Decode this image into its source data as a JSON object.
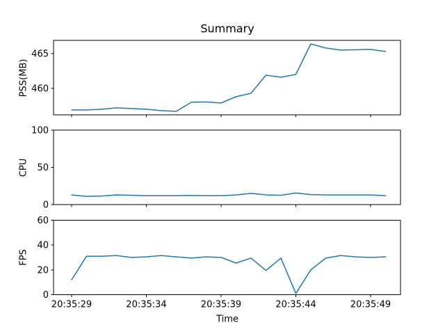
{
  "figure": {
    "title": "Summary",
    "xlabel": "Time",
    "background_color": "#ffffff",
    "line_color": "#1f77b4",
    "axis_color": "#000000",
    "x_tick_indices": [
      0,
      5,
      10,
      15,
      20
    ]
  },
  "chart_data": [
    {
      "type": "line",
      "ylabel": "PSS(MB)",
      "x": [
        "20:35:29",
        "20:35:30",
        "20:35:31",
        "20:35:32",
        "20:35:33",
        "20:35:34",
        "20:35:35",
        "20:35:36",
        "20:35:37",
        "20:35:38",
        "20:35:39",
        "20:35:40",
        "20:35:41",
        "20:35:42",
        "20:35:43",
        "20:35:44",
        "20:35:45",
        "20:35:46",
        "20:35:47",
        "20:35:48",
        "20:35:49",
        "20:35:50"
      ],
      "values": [
        456.9,
        456.9,
        457.0,
        457.2,
        457.1,
        457.0,
        456.8,
        456.7,
        458.0,
        458.05,
        457.9,
        458.8,
        459.3,
        461.9,
        461.6,
        462.0,
        466.4,
        465.8,
        465.5,
        465.55,
        465.6,
        465.3
      ],
      "ylim": [
        456.2,
        466.9
      ],
      "yticks": [
        460,
        465
      ],
      "show_x_tick_labels": false,
      "grid": false
    },
    {
      "type": "line",
      "ylabel": "CPU",
      "x": [
        "20:35:29",
        "20:35:30",
        "20:35:31",
        "20:35:32",
        "20:35:33",
        "20:35:34",
        "20:35:35",
        "20:35:36",
        "20:35:37",
        "20:35:38",
        "20:35:39",
        "20:35:40",
        "20:35:41",
        "20:35:42",
        "20:35:43",
        "20:35:44",
        "20:35:45",
        "20:35:46",
        "20:35:47",
        "20:35:48",
        "20:35:49",
        "20:35:50"
      ],
      "values": [
        13,
        11,
        11.5,
        13,
        12.5,
        12,
        12,
        12,
        12.2,
        12,
        12,
        13,
        15,
        13,
        12.5,
        15.5,
        13.5,
        13,
        13,
        13,
        13,
        12
      ],
      "ylim": [
        0,
        100
      ],
      "yticks": [
        0,
        50,
        100
      ],
      "show_x_tick_labels": false,
      "grid": false
    },
    {
      "type": "line",
      "ylabel": "FPS",
      "x": [
        "20:35:29",
        "20:35:30",
        "20:35:31",
        "20:35:32",
        "20:35:33",
        "20:35:34",
        "20:35:35",
        "20:35:36",
        "20:35:37",
        "20:35:38",
        "20:35:39",
        "20:35:40",
        "20:35:41",
        "20:35:42",
        "20:35:43",
        "20:35:44",
        "20:35:45",
        "20:35:46",
        "20:35:47",
        "20:35:48",
        "20:35:49",
        "20:35:50"
      ],
      "values": [
        12,
        31,
        31,
        31.5,
        30,
        30.5,
        31.5,
        30.5,
        29.5,
        30.5,
        30,
        25.5,
        29.5,
        19.5,
        29.5,
        1,
        20,
        29.5,
        31.5,
        30.5,
        30,
        30.5
      ],
      "ylim": [
        0,
        60
      ],
      "yticks": [
        0,
        20,
        40,
        60
      ],
      "show_x_tick_labels": true,
      "grid": false
    }
  ]
}
